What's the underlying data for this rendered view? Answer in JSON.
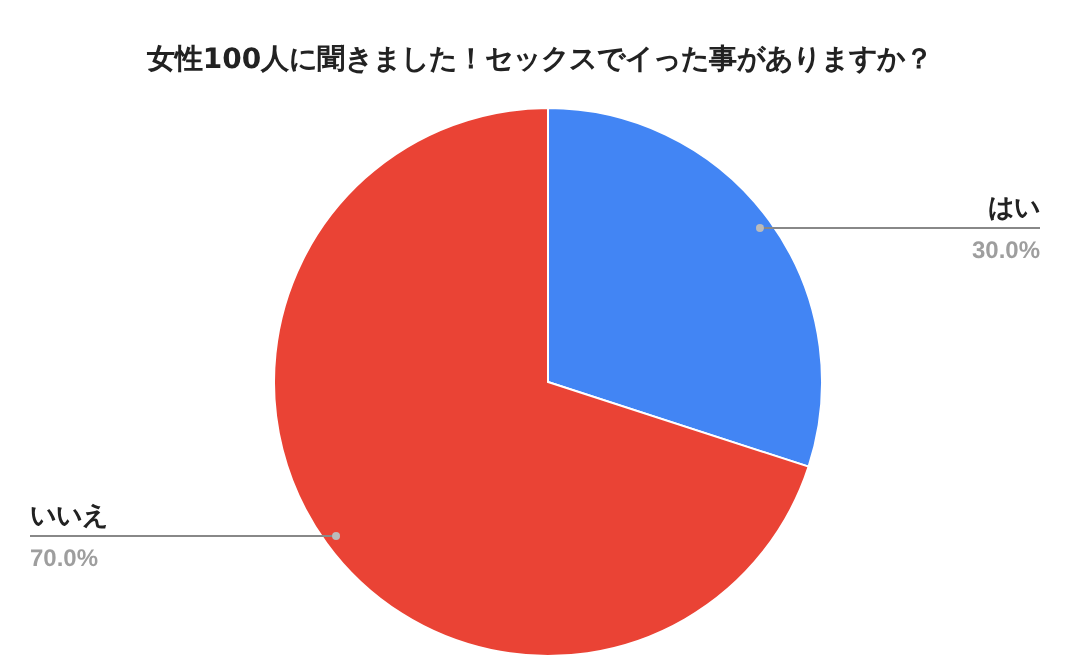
{
  "chart_data": {
    "type": "pie",
    "title": "女性100人に聞きました！セックスでイった事がありますか？",
    "categories": [
      "はい",
      "いいえ"
    ],
    "values": [
      30,
      70
    ],
    "colors": [
      "#4285f4",
      "#ea4335"
    ],
    "value_labels": [
      "30.0%",
      "70.0%"
    ],
    "legend": false
  }
}
